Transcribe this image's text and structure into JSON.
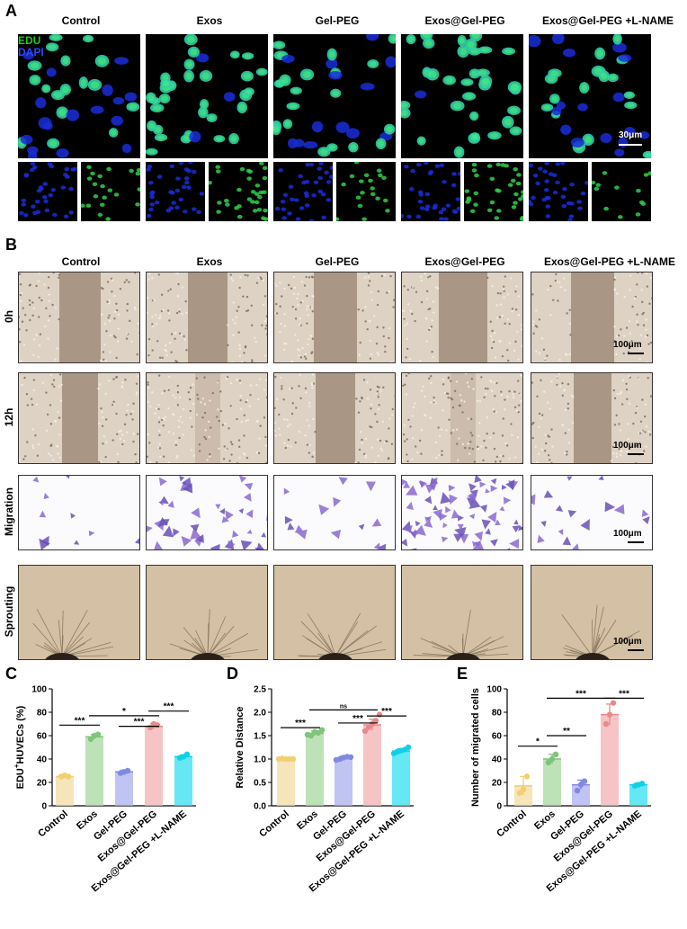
{
  "panel_a": {
    "letter": "A",
    "columns": [
      "Control",
      "Exos",
      "Gel-PEG",
      "Exos@Gel-PEG",
      "Exos@Gel-PEG +L-NAME"
    ],
    "legend_edu": "EDU",
    "legend_dapi": "DAPI",
    "scale": "30μm"
  },
  "panel_b": {
    "letter": "B",
    "columns": [
      "Control",
      "Exos",
      "Gel-PEG",
      "Exos@Gel-PEG",
      "Exos@Gel-PEG +L-NAME"
    ],
    "rows": [
      "0h",
      "12h",
      "Migration",
      "Sprouting"
    ],
    "scale": "100μm"
  },
  "colors": {
    "control": "#f3dca0",
    "exos": "#a8d8a0",
    "gelpeg": "#aab0ee",
    "exosgel": "#f3b0b0",
    "lname": "#33e0f0",
    "control_dot": "#f0d070",
    "exos_dot": "#7ec47a",
    "gelpeg_dot": "#8088e0",
    "exosgel_dot": "#e88a8a",
    "lname_dot": "#10d0e8"
  },
  "chart_data": [
    {
      "letter": "C",
      "type": "bar",
      "categories": [
        "Control",
        "Exos",
        "Gel-PEG",
        "Exos@Gel-PEG",
        "Exos@Gel-PEG +L-NAME"
      ],
      "values": [
        25,
        59,
        29,
        68,
        42
      ],
      "errors": [
        1,
        2,
        1.5,
        2.5,
        1.5
      ],
      "points": [
        [
          25,
          26,
          25
        ],
        [
          57,
          60,
          61
        ],
        [
          28,
          29,
          30
        ],
        [
          67,
          70,
          69
        ],
        [
          41,
          42,
          44
        ]
      ],
      "ylabel_pre": "EDU",
      "ylabel_sup": "+",
      "ylabel_post": "HUVECs (%)",
      "ylim": [
        0,
        100
      ],
      "yticks": [
        0,
        20,
        40,
        60,
        80,
        100
      ],
      "significance": [
        {
          "from": 0,
          "to": 1,
          "label": "***",
          "y": 69
        },
        {
          "from": 1,
          "to": 3,
          "label": "*",
          "y": 77
        },
        {
          "from": 2,
          "to": 3,
          "label": "***",
          "y": 68
        },
        {
          "from": 3,
          "to": 4,
          "label": "***",
          "y": 81
        }
      ]
    },
    {
      "letter": "D",
      "type": "bar",
      "categories": [
        "Control",
        "Exos",
        "Gel-PEG",
        "Exos@Gel-PEG",
        "Exos@Gel-PEG +L-NAME"
      ],
      "values": [
        1.0,
        1.55,
        1.02,
        1.73,
        1.17
      ],
      "errors": [
        0.01,
        0.05,
        0.04,
        0.12,
        0.05
      ],
      "points": [
        [
          1.0,
          1.01,
          1.0,
          1.0,
          1.0
        ],
        [
          1.52,
          1.5,
          1.58,
          1.56,
          1.62
        ],
        [
          0.98,
          1.0,
          1.03,
          1.05,
          1.04
        ],
        [
          1.6,
          1.68,
          1.75,
          1.82,
          1.95
        ],
        [
          1.12,
          1.16,
          1.18,
          1.2,
          1.25
        ]
      ],
      "ylabel": "Relative Distance",
      "ylim": [
        0,
        2.5
      ],
      "yticks": [
        "0.0",
        "0.5",
        "1.0",
        "1.5",
        "2.0",
        "2.5"
      ],
      "significance": [
        {
          "from": 0,
          "to": 1,
          "label": "***",
          "y": 1.67
        },
        {
          "from": 1,
          "to": 3,
          "label": "ns",
          "y": 2.05
        },
        {
          "from": 2,
          "to": 3,
          "label": "***",
          "y": 1.77
        },
        {
          "from": 3,
          "to": 4,
          "label": "***",
          "y": 1.92
        }
      ]
    },
    {
      "letter": "E",
      "type": "bar",
      "categories": [
        "Control",
        "Exos",
        "Gel-PEG",
        "Exos@Gel-PEG",
        "Exos@Gel-PEG +L-NAME"
      ],
      "values": [
        17,
        40,
        18,
        78,
        18
      ],
      "errors": [
        8,
        4,
        4,
        9,
        1.5
      ],
      "points": [
        [
          11,
          14,
          25
        ],
        [
          37,
          40,
          44
        ],
        [
          13,
          18,
          21
        ],
        [
          70,
          78,
          88
        ],
        [
          17,
          18,
          19
        ]
      ],
      "ylabel": "Number of migrated cells",
      "ylim": [
        0,
        100
      ],
      "yticks": [
        0,
        20,
        40,
        60,
        80,
        100
      ],
      "significance": [
        {
          "from": 0,
          "to": 1,
          "label": "*",
          "y": 51
        },
        {
          "from": 1,
          "to": 2,
          "label": "**",
          "y": 60
        },
        {
          "from": 1,
          "to": 3,
          "label": "***",
          "y": 92
        },
        {
          "from": 3,
          "to": 4,
          "label": "***",
          "y": 92
        }
      ]
    }
  ]
}
